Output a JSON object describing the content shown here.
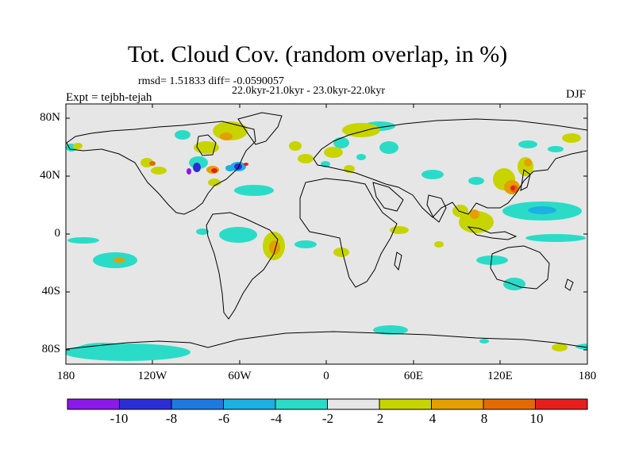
{
  "title": "Tot. Cloud Cov. (random overlap, in %)",
  "stats": "rmsd= 1.51833 diff= -0.0590057",
  "subtitle": "22.0kyr-21.0kyr - 23.0kyr-22.0kyr",
  "expt": "Expt = tejbh-tejah",
  "season": "DJF",
  "lat_ticks": [
    "80N",
    "40N",
    "0",
    "40S",
    "80S"
  ],
  "lon_ticks": [
    "180",
    "120W",
    "60W",
    "0",
    "60E",
    "120E",
    "180"
  ],
  "colorbar": {
    "labels": [
      "-10",
      "-8",
      "-6",
      "-4",
      "-2",
      "2",
      "4",
      "8",
      "10"
    ],
    "colors": [
      "#8a1ae8",
      "#2d2dd6",
      "#1f7ae0",
      "#1cb0e3",
      "#2adcc8",
      "#e6e6e6",
      "#c8d400",
      "#e3a000",
      "#e36a00",
      "#e61e1e"
    ]
  },
  "colors": {
    "background_field": "#e6e6e6",
    "coast": "#000000"
  }
}
